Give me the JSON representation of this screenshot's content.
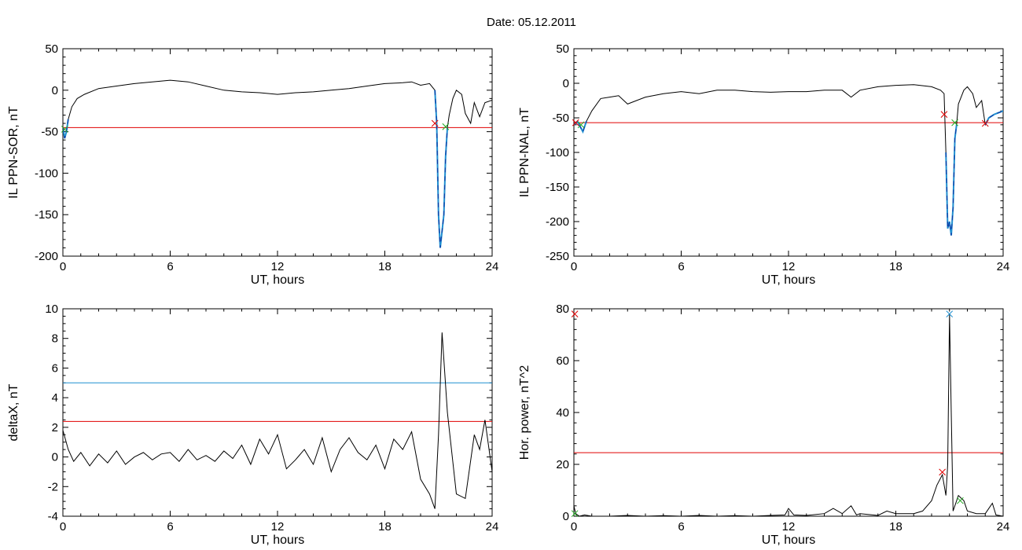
{
  "header": {
    "date_label": "Date:  05.12.2011"
  },
  "colors": {
    "series": "#000000",
    "threshold_red": "#e00000",
    "threshold_blue": "#1f8fd0",
    "highlight_blue": "#1f8fd0",
    "highlight_dark": "#1030a0",
    "marker_red": "#e00000",
    "marker_green": "#22aa22"
  },
  "chart_data": [
    {
      "id": "sor",
      "type": "line",
      "xlabel": "UT, hours",
      "ylabel": "IL PPN-SOR, nT",
      "xlim": [
        0,
        24
      ],
      "ylim": [
        -200,
        50
      ],
      "xticks": [
        0,
        6,
        12,
        18,
        24
      ],
      "yticks": [
        -200,
        -150,
        -100,
        -50,
        0,
        50
      ],
      "grid": false,
      "threshold_red": -45,
      "series": [
        {
          "x": [
            0,
            0.1,
            0.2,
            0.3,
            0.5,
            0.8,
            1.2,
            2,
            3,
            4,
            5,
            6,
            7,
            8,
            9,
            10,
            11,
            12,
            13,
            14,
            15,
            16,
            17,
            18,
            19,
            19.5,
            20,
            20.5,
            20.8,
            20.9,
            21.0,
            21.1,
            21.2,
            21.3,
            21.4,
            21.5,
            21.6,
            21.8,
            22.0,
            22.3,
            22.5,
            22.8,
            23.0,
            23.3,
            23.6,
            24
          ],
          "y": [
            -45,
            -58,
            -50,
            -35,
            -20,
            -10,
            -5,
            2,
            5,
            8,
            10,
            12,
            10,
            5,
            0,
            -2,
            -3,
            -5,
            -3,
            -2,
            0,
            2,
            5,
            8,
            9,
            10,
            6,
            8,
            0,
            -40,
            -150,
            -190,
            -170,
            -150,
            -80,
            -45,
            -30,
            -10,
            0,
            -5,
            -28,
            -40,
            -15,
            -32,
            -15,
            -12
          ]
        }
      ],
      "highlight_ranges": [
        [
          0,
          0.3
        ],
        [
          20.8,
          21.5
        ]
      ],
      "markers": [
        {
          "x": 0.1,
          "y": -47,
          "color": "green"
        },
        {
          "x": 20.8,
          "y": -40,
          "color": "red"
        },
        {
          "x": 21.4,
          "y": -44,
          "color": "green"
        }
      ]
    },
    {
      "id": "nal",
      "type": "line",
      "xlabel": "UT, hours",
      "ylabel": "IL PPN-NAL, nT",
      "xlim": [
        0,
        24
      ],
      "ylim": [
        -250,
        50
      ],
      "xticks": [
        0,
        6,
        12,
        18,
        24
      ],
      "yticks": [
        -250,
        -200,
        -150,
        -100,
        -50,
        0,
        50
      ],
      "grid": false,
      "threshold_red": -57,
      "series": [
        {
          "x": [
            0,
            0.2,
            0.5,
            0.7,
            1,
            1.5,
            2,
            2.5,
            3,
            3.5,
            4,
            5,
            6,
            7,
            8,
            9,
            10,
            11,
            12,
            13,
            14,
            15,
            15.5,
            16,
            17,
            18,
            19,
            20,
            20.5,
            20.7,
            20.8,
            20.9,
            21.0,
            21.1,
            21.2,
            21.3,
            21.4,
            21.5,
            21.8,
            22.0,
            22.3,
            22.5,
            22.8,
            23.0,
            23.2,
            23.5,
            24
          ],
          "y": [
            -60,
            -55,
            -70,
            -55,
            -40,
            -22,
            -20,
            -18,
            -30,
            -25,
            -20,
            -15,
            -12,
            -15,
            -10,
            -10,
            -12,
            -13,
            -12,
            -12,
            -10,
            -10,
            -20,
            -10,
            -5,
            -3,
            -2,
            -5,
            -10,
            -15,
            -100,
            -210,
            -200,
            -220,
            -180,
            -80,
            -60,
            -30,
            -10,
            -5,
            -15,
            -35,
            -25,
            -60,
            -50,
            -45,
            -40
          ]
        }
      ],
      "highlight_ranges": [
        [
          0,
          0.7
        ],
        [
          20.8,
          21.4
        ],
        [
          23.0,
          24
        ]
      ],
      "markers": [
        {
          "x": 0.1,
          "y": -57,
          "color": "red"
        },
        {
          "x": 0.4,
          "y": -60,
          "color": "green"
        },
        {
          "x": 20.7,
          "y": -45,
          "color": "red"
        },
        {
          "x": 21.3,
          "y": -57,
          "color": "green"
        },
        {
          "x": 23.0,
          "y": -58,
          "color": "red"
        }
      ]
    },
    {
      "id": "deltax",
      "type": "line",
      "xlabel": "UT, hours",
      "ylabel": "deltaX, nT",
      "xlim": [
        0,
        24
      ],
      "ylim": [
        -4,
        10
      ],
      "xticks": [
        0,
        6,
        12,
        18,
        24
      ],
      "yticks": [
        -4,
        -2,
        0,
        2,
        4,
        6,
        8,
        10
      ],
      "grid": false,
      "threshold_red": 2.4,
      "threshold_blue": 5.0,
      "series": [
        {
          "x": [
            0,
            0.3,
            0.6,
            1,
            1.5,
            2,
            2.5,
            3,
            3.5,
            4,
            4.5,
            5,
            5.5,
            6,
            6.5,
            7,
            7.5,
            8,
            8.5,
            9,
            9.5,
            10,
            10.5,
            11,
            11.5,
            12,
            12.5,
            13,
            13.5,
            14,
            14.5,
            15,
            15.5,
            16,
            16.5,
            17,
            17.5,
            18,
            18.5,
            19,
            19.5,
            20,
            20.5,
            20.8,
            21,
            21.2,
            21.5,
            22,
            22.5,
            23,
            23.3,
            23.6,
            24
          ],
          "y": [
            1.8,
            0.5,
            -0.3,
            0.3,
            -0.6,
            0.2,
            -0.4,
            0.4,
            -0.5,
            0.0,
            0.3,
            -0.2,
            0.2,
            0.3,
            -0.3,
            0.5,
            -0.2,
            0.1,
            -0.3,
            0.4,
            -0.1,
            0.8,
            -0.5,
            1.2,
            0.2,
            1.5,
            -0.8,
            -0.2,
            0.5,
            -0.5,
            1.3,
            -1.0,
            0.5,
            1.3,
            0.3,
            -0.2,
            0.8,
            -0.8,
            1.2,
            0.5,
            1.7,
            -1.5,
            -2.5,
            -3.5,
            1.5,
            8.4,
            3.0,
            -2.5,
            -2.8,
            1.5,
            0.5,
            2.5,
            -1.0
          ]
        }
      ],
      "markers": []
    },
    {
      "id": "power",
      "type": "line",
      "xlabel": "UT, hours",
      "ylabel": "Hor. power, nT^2",
      "xlim": [
        0,
        24
      ],
      "ylim": [
        0,
        80
      ],
      "xticks": [
        0,
        6,
        12,
        18,
        24
      ],
      "yticks": [
        0,
        20,
        40,
        60,
        80
      ],
      "grid": false,
      "threshold_red": 24.5,
      "series": [
        {
          "x": [
            0,
            0.1,
            0.3,
            0.6,
            1,
            2,
            3,
            4,
            5,
            6,
            7,
            8,
            9,
            10,
            11,
            11.8,
            12,
            12.3,
            13,
            14,
            14.5,
            15,
            15.5,
            15.8,
            16,
            17,
            17.5,
            18,
            19,
            19.5,
            20,
            20.3,
            20.6,
            20.8,
            20.9,
            21.0,
            21.1,
            21.2,
            21.3,
            21.5,
            21.8,
            22,
            22.5,
            23,
            23.4,
            23.6,
            24
          ],
          "y": [
            4,
            1,
            0,
            0.5,
            0,
            0,
            0.3,
            0,
            0.2,
            0,
            0.3,
            0,
            0.2,
            0,
            0.3,
            0.5,
            3,
            0.5,
            0.3,
            1,
            3,
            1,
            4,
            0.5,
            1,
            0.3,
            2,
            1,
            1,
            2,
            6,
            12,
            16,
            8,
            20,
            78,
            40,
            2,
            4,
            8,
            6,
            2,
            1,
            1,
            5,
            0.5,
            0
          ]
        }
      ],
      "markers": [
        {
          "x": 0.05,
          "y": 78,
          "color": "red"
        },
        {
          "x": 0.05,
          "y": 1,
          "color": "green"
        },
        {
          "x": 20.6,
          "y": 17,
          "color": "red"
        },
        {
          "x": 21.0,
          "y": 78,
          "color": "blue"
        },
        {
          "x": 21.6,
          "y": 6,
          "color": "green"
        }
      ]
    }
  ]
}
